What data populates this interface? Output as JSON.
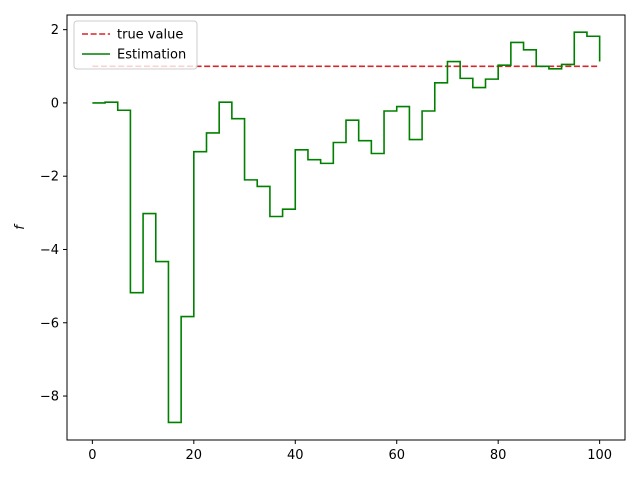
{
  "chart_data": {
    "type": "line",
    "title": "",
    "xlabel": "",
    "ylabel": "f",
    "xlim": [
      -5,
      105
    ],
    "ylim": [
      -9.2,
      2.4
    ],
    "xticks": [
      0,
      20,
      40,
      60,
      80,
      100
    ],
    "yticks": [
      -8,
      -6,
      -4,
      -2,
      0,
      2
    ],
    "xtick_labels": [
      "0",
      "20",
      "40",
      "60",
      "80",
      "100"
    ],
    "ytick_labels": [
      "−8",
      "−6",
      "−4",
      "−2",
      "0",
      "2"
    ],
    "grid": false,
    "legend_position": "top-left",
    "series": [
      {
        "name": "true value",
        "style": "dashed",
        "color": "#d62728",
        "x": [
          0,
          100
        ],
        "y": [
          1.0,
          1.0
        ]
      },
      {
        "name": "Estimation",
        "style": "steps-post",
        "color": "#008000",
        "x": [
          0,
          2.5,
          5,
          7.5,
          10,
          12.5,
          15,
          17.5,
          20,
          22.5,
          25,
          27.5,
          30,
          32.5,
          35,
          37.5,
          40,
          42.5,
          45,
          47.5,
          50,
          52.5,
          55,
          57.5,
          60,
          62.5,
          65,
          67.5,
          70,
          72.5,
          75,
          77.5,
          80,
          82.5,
          85,
          87.5,
          90,
          92.5,
          95,
          97.5,
          100
        ],
        "y": [
          0.0,
          0.02,
          -0.2,
          -5.18,
          -3.02,
          -4.33,
          -8.72,
          -5.83,
          -1.33,
          -0.82,
          0.02,
          -0.43,
          -2.1,
          -2.28,
          -3.1,
          -2.9,
          -1.28,
          -1.55,
          -1.65,
          -1.08,
          -0.47,
          -1.03,
          -1.38,
          -0.22,
          -0.1,
          -1.0,
          -0.22,
          0.55,
          1.13,
          0.67,
          0.42,
          0.65,
          1.03,
          1.65,
          1.45,
          1.0,
          0.93,
          1.05,
          1.93,
          1.82,
          1.13
        ]
      }
    ]
  }
}
